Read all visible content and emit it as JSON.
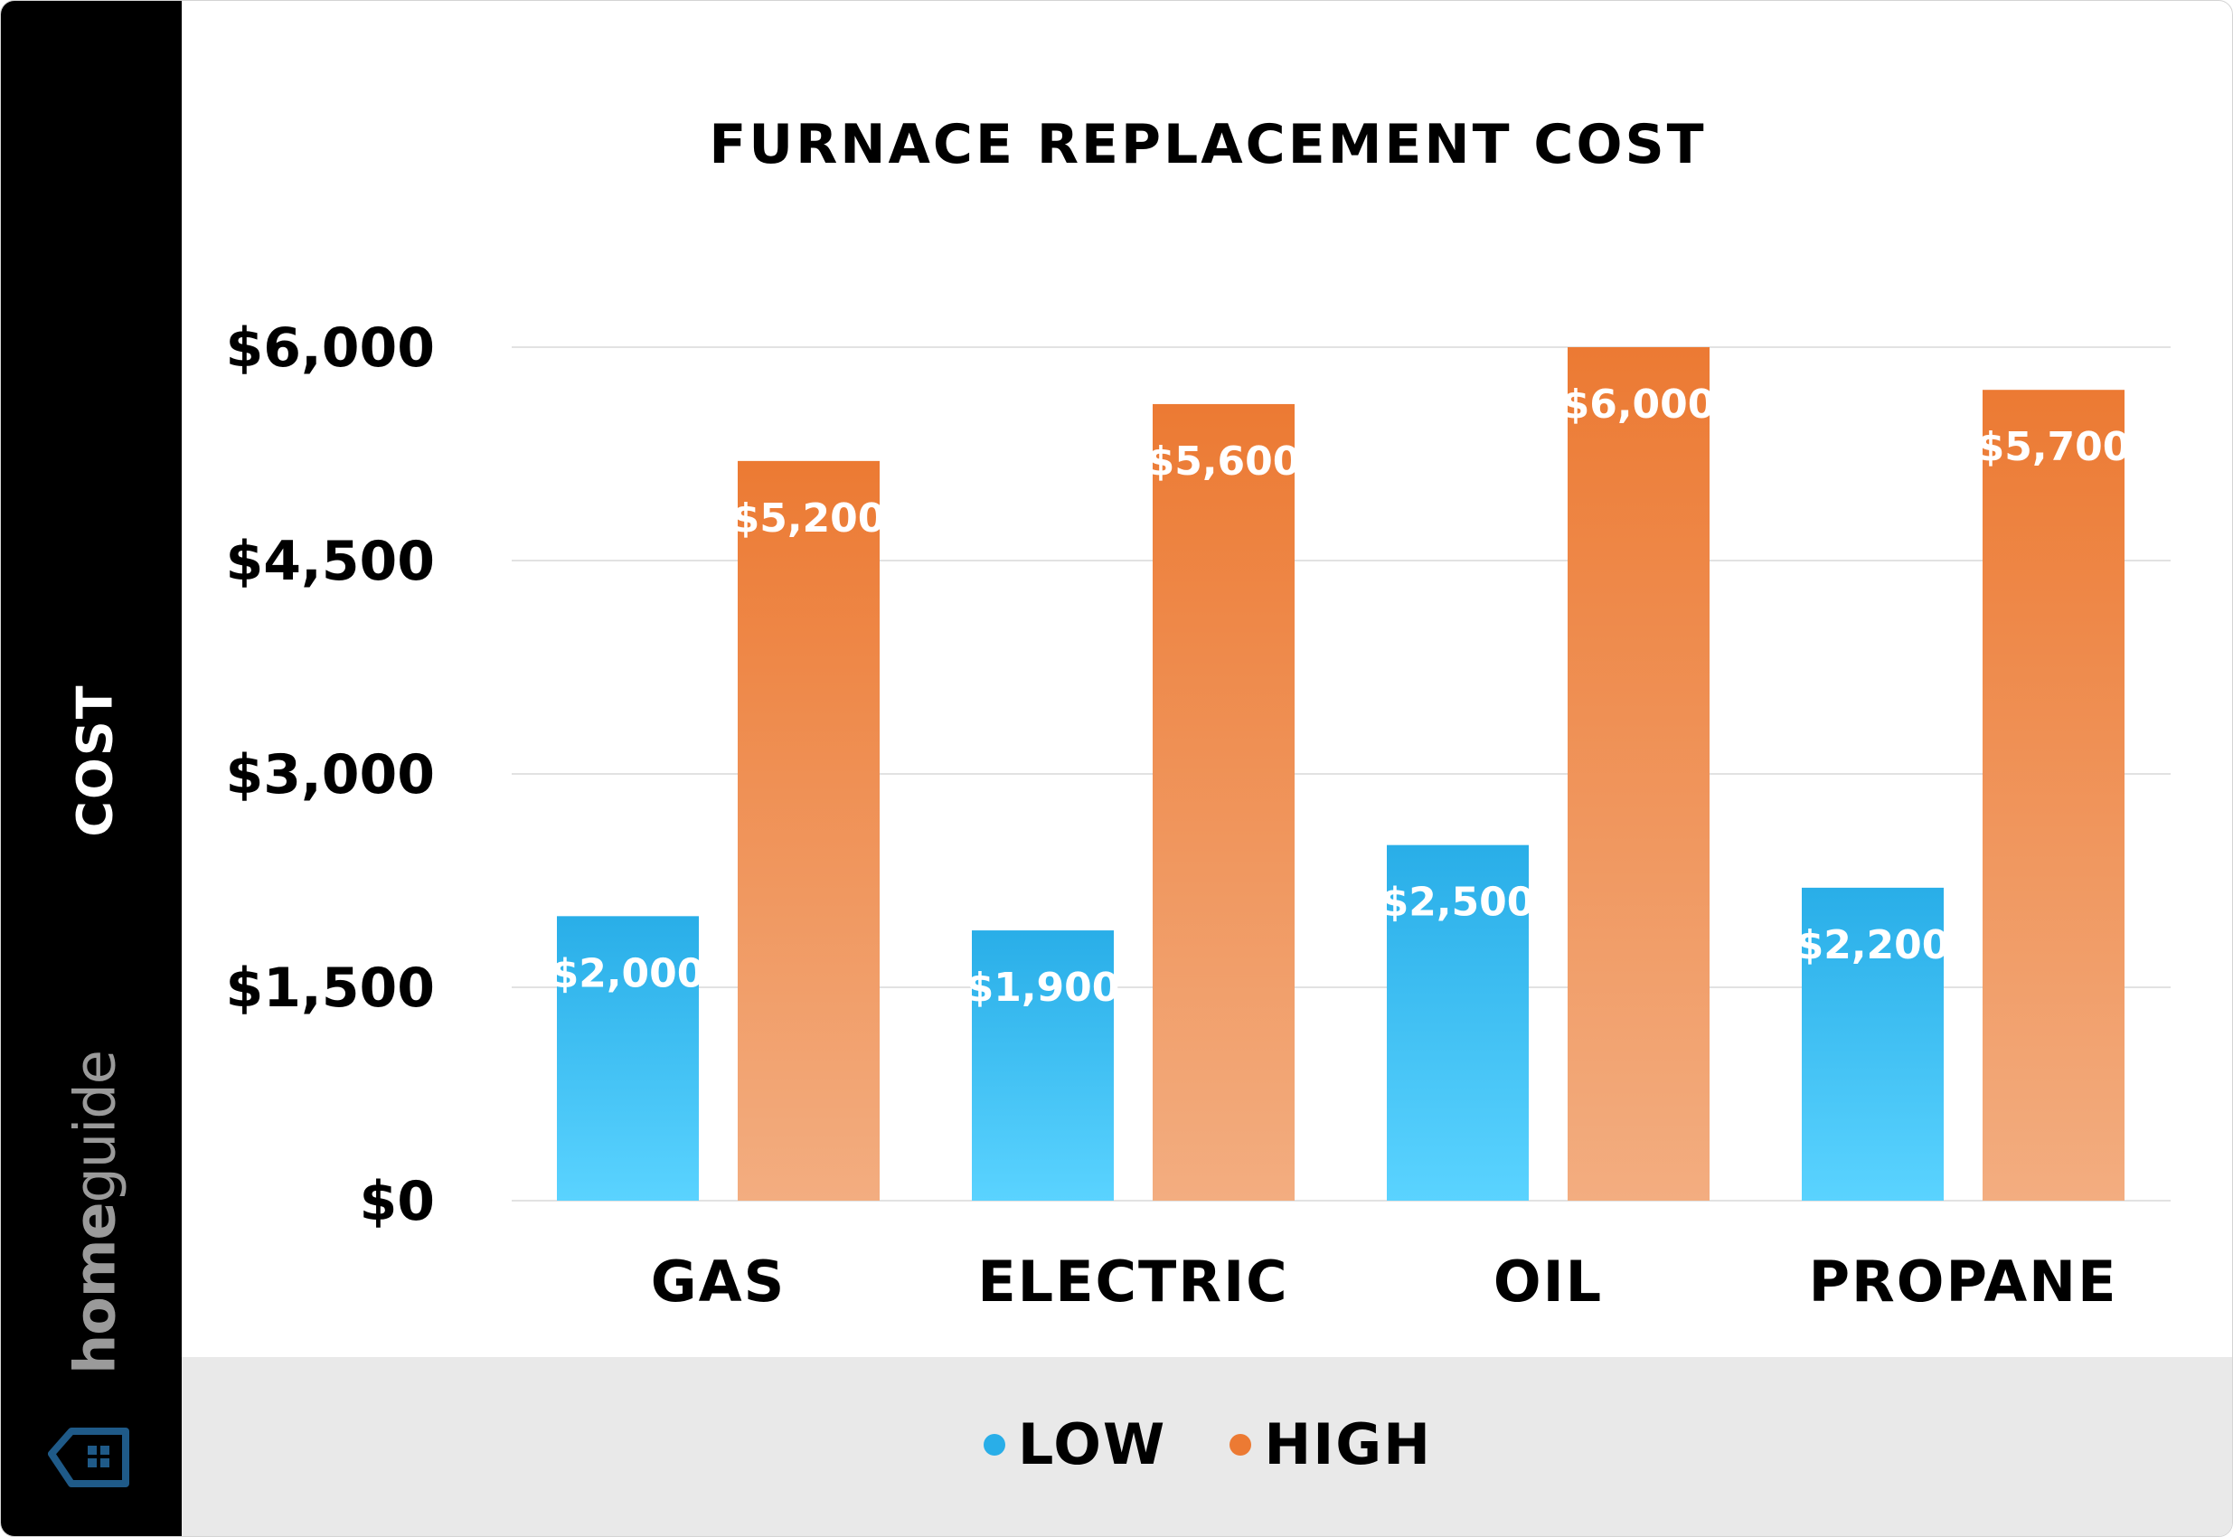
{
  "chart_data": {
    "type": "bar",
    "title": "FURNACE REPLACEMENT COST",
    "ylabel": "COST",
    "xlabel": "",
    "categories": [
      "GAS",
      "ELECTRIC",
      "OIL",
      "PROPANE"
    ],
    "series": [
      {
        "name": "LOW",
        "values": [
          2000,
          1900,
          2500,
          2200
        ],
        "labels": [
          "$2,000",
          "$1,900",
          "$2,500",
          "$2,200"
        ],
        "color": "#29aee8"
      },
      {
        "name": "HIGH",
        "values": [
          5200,
          5600,
          6000,
          5700
        ],
        "labels": [
          "$5,200",
          "$5,600",
          "$6,000",
          "$5,700"
        ],
        "color": "#ec7a33"
      }
    ],
    "yticks": [
      0,
      1500,
      3000,
      4500,
      6000
    ],
    "ytick_labels": [
      "$0",
      "$1,500",
      "$3,000",
      "$4,500",
      "$6,000"
    ],
    "ylim": [
      0,
      6000
    ],
    "grid": true,
    "legend_placement": "bottom-center"
  },
  "brand": {
    "bold": "home",
    "light": "guide"
  },
  "colors": {
    "sidebar": "#000000",
    "low_top": "#29aee8",
    "low_bottom": "#5ad3ff",
    "high_top": "#ec7a33",
    "high_bottom": "#f3ad80",
    "legend_band": "#e9e9e9",
    "logo": "#1f5a88"
  }
}
